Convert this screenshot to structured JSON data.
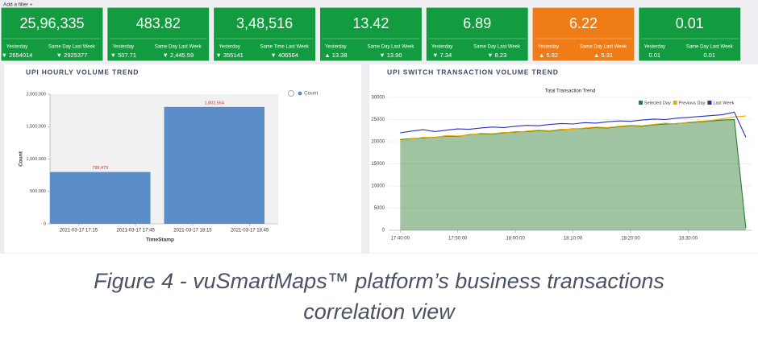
{
  "filter_label": "Add a filter +",
  "kpis": [
    {
      "value": "25,96,335",
      "color": "#129b3f",
      "items": [
        {
          "label": "Yesterday",
          "value": "▼ 2654014"
        },
        {
          "label": "Same Day Last Week",
          "value": "▼ 2925377"
        }
      ]
    },
    {
      "value": "483.82",
      "color": "#129b3f",
      "items": [
        {
          "label": "Yesterday",
          "value": "▼ 507.71"
        },
        {
          "label": "Same Day Last Week",
          "value": "▼ 2,445.59"
        }
      ]
    },
    {
      "value": "3,48,516",
      "color": "#129b3f",
      "items": [
        {
          "label": "Yesterday",
          "value": "▼ 355141"
        },
        {
          "label": "Same Time Last Week",
          "value": "▼ 406564"
        }
      ]
    },
    {
      "value": "13.42",
      "color": "#129b3f",
      "items": [
        {
          "label": "Yesterday",
          "value": "▲ 13.38"
        },
        {
          "label": "Same Day Last Week",
          "value": "▼ 13.90"
        }
      ]
    },
    {
      "value": "6.89",
      "color": "#129b3f",
      "items": [
        {
          "label": "Yesterday",
          "value": "▼ 7.34"
        },
        {
          "label": "Same Day Last Week",
          "value": "▼ 8.23"
        }
      ]
    },
    {
      "value": "6.22",
      "color": "#f07c17",
      "items": [
        {
          "label": "Yesterday",
          "value": "▲ 5.82"
        },
        {
          "label": "Same Day Last Week",
          "value": "▲ 5.31"
        }
      ]
    },
    {
      "value": "0.01",
      "color": "#129b3f",
      "items": [
        {
          "label": "Yesterday",
          "value": "0.01"
        },
        {
          "label": "Same Day Last Week",
          "value": "0.01"
        }
      ]
    }
  ],
  "chart_data": [
    {
      "type": "bar",
      "panel_title": "UPI HOURLY VOLUME TREND",
      "xlabel": "TimeStamp",
      "ylabel": "Count",
      "x": [
        "2021-03-17 17:00",
        "2021-03-17 18:00"
      ],
      "series": [
        {
          "name": "Count",
          "color": "#5b8dc9",
          "values": [
            799479,
            1803564
          ],
          "value_labels": [
            "799,479",
            "1,803,564"
          ]
        }
      ],
      "xlim": [
        "2021-03-17 17:00",
        "2021-03-17 19:00"
      ],
      "xticks": [
        "2021-03-17 17:15",
        "2021-03-17 17:45",
        "2021-03-17 18:15",
        "2021-03-17 18:45"
      ],
      "ylim": [
        0,
        2000000
      ],
      "yticks": [
        0,
        {
          "value": 500000,
          "label": "500,000"
        },
        {
          "value": 1000000,
          "label": "1,000,000"
        },
        {
          "value": 1500000,
          "label": "1,500,000"
        },
        {
          "value": 2000000,
          "label": "2,000,000"
        }
      ],
      "grid": false
    },
    {
      "type": "line",
      "panel_title": "UPI SWITCH TRANSACTION VOLUME TREND",
      "title": "Total Transaction Trend",
      "x": [
        "17:40:00",
        "17:42:00",
        "17:44:00",
        "17:46:00",
        "17:48:00",
        "17:50:00",
        "17:52:00",
        "17:54:00",
        "17:56:00",
        "17:58:00",
        "18:00:00",
        "18:02:00",
        "18:04:00",
        "18:06:00",
        "18:08:00",
        "18:10:00",
        "18:12:00",
        "18:14:00",
        "18:16:00",
        "18:18:00",
        "18:20:00",
        "18:22:00",
        "18:24:00",
        "18:26:00",
        "18:28:00",
        "18:30:00",
        "18:32:00",
        "18:34:00",
        "18:36:00",
        "18:38:00",
        "18:40:00"
      ],
      "series": [
        {
          "name": "Selected Day",
          "color": "#2e7d32",
          "area": true,
          "values": [
            20500,
            20700,
            20900,
            21000,
            21300,
            21200,
            21600,
            21800,
            21700,
            22000,
            22200,
            22300,
            22500,
            22400,
            22700,
            22900,
            23000,
            23200,
            23100,
            23400,
            23600,
            23500,
            23800,
            24000,
            24100,
            24300,
            24500,
            24700,
            24900,
            25000,
            500
          ]
        },
        {
          "name": "Previous Day",
          "color": "#f2a900",
          "area": false,
          "values": [
            20300,
            20600,
            21000,
            20900,
            21400,
            21300,
            21500,
            21900,
            21800,
            22100,
            22000,
            22400,
            22600,
            22500,
            22800,
            22800,
            23100,
            23300,
            23200,
            23500,
            23700,
            23600,
            23900,
            24200,
            24000,
            24400,
            24600,
            24800,
            25200,
            25600,
            25800
          ]
        },
        {
          "name": "Last Week",
          "color": "#2b2fb8",
          "area": false,
          "values": [
            22000,
            22400,
            22700,
            22300,
            22600,
            22900,
            22800,
            23100,
            23300,
            23200,
            23500,
            23700,
            23600,
            23900,
            24100,
            24000,
            24300,
            24200,
            24500,
            24700,
            24600,
            24900,
            25100,
            25000,
            25300,
            25500,
            25700,
            25900,
            26100,
            26700,
            21000
          ]
        }
      ],
      "xlim": [
        "17:38:00",
        "18:41:00"
      ],
      "xticks": [
        "17:40:00",
        "17:50:00",
        "18:00:00",
        "18:10:00",
        "18:20:00",
        "18:30:00"
      ],
      "ylim": [
        0,
        30000
      ],
      "yticks": [
        0,
        5000,
        10000,
        15000,
        20000,
        25000,
        30000
      ],
      "grid": true,
      "legend": "top-right"
    }
  ],
  "caption": "Figure 4 - vuSmartMaps™ platform’s business transactions correlation view"
}
